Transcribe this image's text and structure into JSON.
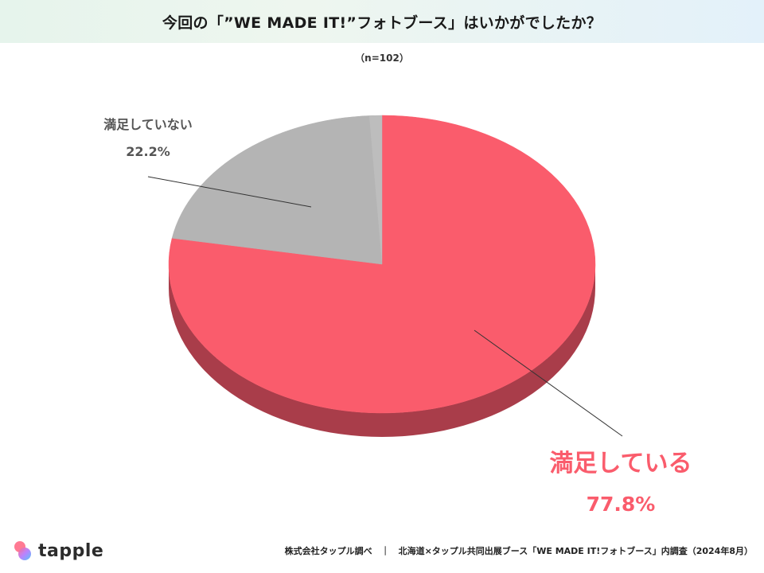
{
  "header": {
    "title": "今回の「”WE MADE IT!”フォトブース」はいかがでしたか？"
  },
  "sample_size": "（n=102）",
  "colors": {
    "satisfied": "#fa5c6c",
    "satisfied_side": "#a93d4a",
    "not_satisfied": "#b4b4b4",
    "not_satisfied_top": "#bdbdbd",
    "leader": "#333333"
  },
  "chart_data": {
    "type": "pie",
    "style": "3d",
    "series": [
      {
        "categories": [
          "満足している",
          "満足していない"
        ],
        "values": [
          77.8,
          22.2
        ]
      }
    ],
    "labels": [
      {
        "name": "満足している",
        "value": "77.8%"
      },
      {
        "name": "満足していない",
        "value": "22.2%"
      }
    ]
  },
  "footer": {
    "logo_text": "tapple",
    "source": "株式会社タップル調べ　｜　北海道×タップル共同出展ブース「WE MADE IT!フォトブース」内調査（2024年8月）"
  }
}
